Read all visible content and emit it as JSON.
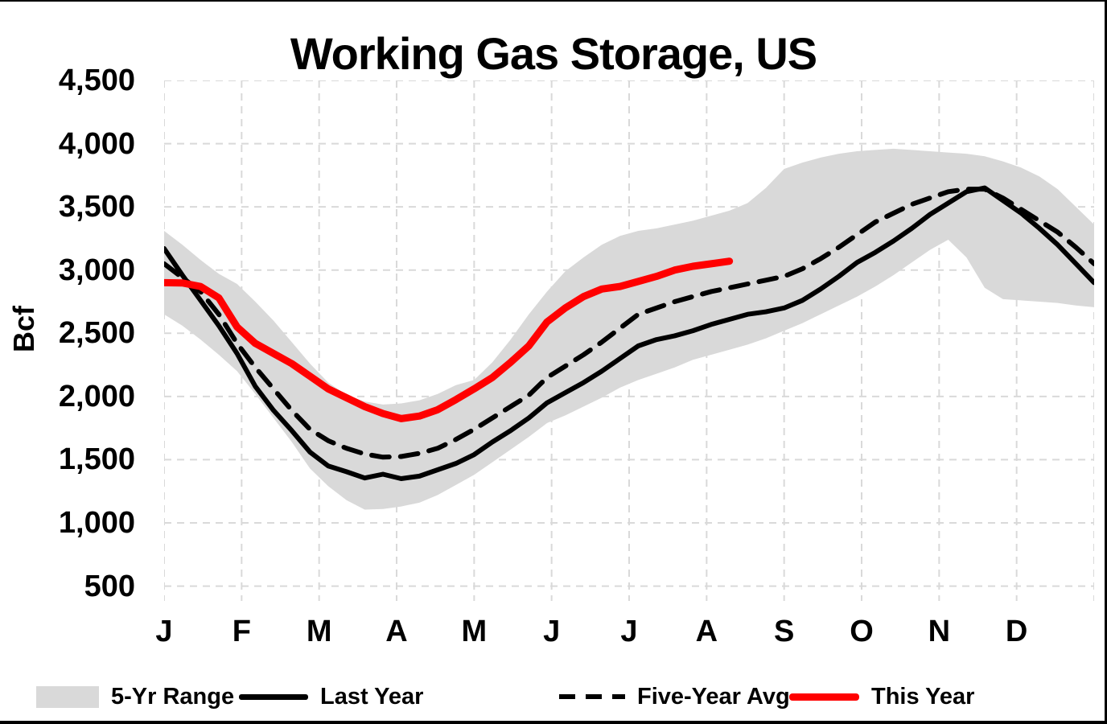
{
  "title": "Working Gas Storage, US",
  "y_axis": {
    "label": "Bcf",
    "ticks": [
      "4,500",
      "4,000",
      "3,500",
      "3,000",
      "2,500",
      "2,000",
      "1,500",
      "1,000",
      "500"
    ],
    "max": 4500,
    "min": 500,
    "step": 500
  },
  "x_axis": {
    "months": [
      "J",
      "F",
      "M",
      "A",
      "M",
      "J",
      "J",
      "A",
      "S",
      "O",
      "N",
      "D"
    ]
  },
  "legend": [
    {
      "label": "5-Yr Range",
      "type": "band",
      "color": "#d9d9d9"
    },
    {
      "label": "Last Year",
      "type": "solid",
      "color": "#000000"
    },
    {
      "label": "Five-Year Avg",
      "type": "dashed",
      "color": "#000000"
    },
    {
      "label": "This Year",
      "type": "thick",
      "color": "#ff0000"
    }
  ],
  "colors": {
    "band": "#d9d9d9",
    "gridline": "#d9d9d9",
    "last_year": "#000000",
    "five_year_avg": "#000000",
    "this_year": "#ff0000"
  },
  "chart_data": {
    "type": "line",
    "title": "Working Gas Storage, US",
    "xlabel": "",
    "ylabel": "Bcf",
    "ylim": [
      500,
      4500
    ],
    "grid": true,
    "legend_position": "bottom",
    "x_unit": "weeks (Jan-Dec, 52 weekly points)",
    "month_tick_labels": [
      "J",
      "F",
      "M",
      "A",
      "M",
      "J",
      "J",
      "A",
      "S",
      "O",
      "N",
      "D"
    ],
    "series": [
      {
        "name": "5-Yr Range",
        "type": "band",
        "color": "#d9d9d9",
        "upper": [
          3310,
          3200,
          3080,
          2970,
          2890,
          2750,
          2600,
          2430,
          2260,
          2110,
          2013,
          1960,
          1936,
          1945,
          1970,
          2020,
          2090,
          2130,
          2270,
          2450,
          2650,
          2830,
          2990,
          3100,
          3200,
          3270,
          3310,
          3330,
          3360,
          3390,
          3430,
          3470,
          3530,
          3650,
          3800,
          3850,
          3890,
          3920,
          3940,
          3950,
          3960,
          3950,
          3940,
          3930,
          3920,
          3900,
          3860,
          3810,
          3740,
          3640,
          3500,
          3360
        ],
        "lower": [
          2650,
          2560,
          2450,
          2330,
          2200,
          2020,
          1830,
          1640,
          1430,
          1290,
          1180,
          1105,
          1110,
          1130,
          1160,
          1220,
          1300,
          1380,
          1480,
          1580,
          1680,
          1790,
          1850,
          1920,
          1990,
          2070,
          2130,
          2180,
          2230,
          2290,
          2330,
          2370,
          2410,
          2460,
          2520,
          2580,
          2650,
          2720,
          2790,
          2870,
          2960,
          3060,
          3160,
          3240,
          3100,
          2860,
          2770,
          2760,
          2750,
          2740,
          2720,
          2706
        ]
      },
      {
        "name": "Last Year",
        "type": "line",
        "style": "solid",
        "color": "#000000",
        "width": 6,
        "values": [
          3170,
          2960,
          2760,
          2560,
          2340,
          2080,
          1890,
          1730,
          1560,
          1450,
          1405,
          1355,
          1385,
          1350,
          1370,
          1420,
          1470,
          1540,
          1640,
          1730,
          1830,
          1950,
          2030,
          2110,
          2200,
          2300,
          2400,
          2450,
          2480,
          2520,
          2570,
          2610,
          2650,
          2670,
          2700,
          2760,
          2850,
          2950,
          3060,
          3140,
          3230,
          3330,
          3440,
          3530,
          3620,
          3650,
          3550,
          3450,
          3330,
          3200,
          3050,
          2900
        ]
      },
      {
        "name": "Five-Year Avg",
        "type": "line",
        "style": "dashed",
        "color": "#000000",
        "width": 6,
        "values": [
          3050,
          2940,
          2830,
          2650,
          2420,
          2230,
          2060,
          1890,
          1740,
          1650,
          1590,
          1545,
          1520,
          1525,
          1550,
          1590,
          1660,
          1740,
          1830,
          1920,
          2010,
          2150,
          2240,
          2330,
          2430,
          2540,
          2650,
          2700,
          2750,
          2790,
          2830,
          2860,
          2890,
          2920,
          2950,
          3010,
          3090,
          3180,
          3280,
          3380,
          3450,
          3520,
          3570,
          3620,
          3640,
          3640,
          3570,
          3480,
          3390,
          3300,
          3180,
          3050
        ]
      },
      {
        "name": "This Year",
        "type": "line",
        "style": "solid",
        "color": "#ff0000",
        "width": 9,
        "values": [
          2900,
          2898,
          2870,
          2780,
          2550,
          2420,
          2340,
          2260,
          2160,
          2060,
          1990,
          1920,
          1865,
          1825,
          1845,
          1895,
          1975,
          2060,
          2150,
          2270,
          2400,
          2590,
          2700,
          2790,
          2850,
          2870,
          2910,
          2950,
          3000,
          3030,
          3050,
          3070
        ]
      }
    ]
  }
}
